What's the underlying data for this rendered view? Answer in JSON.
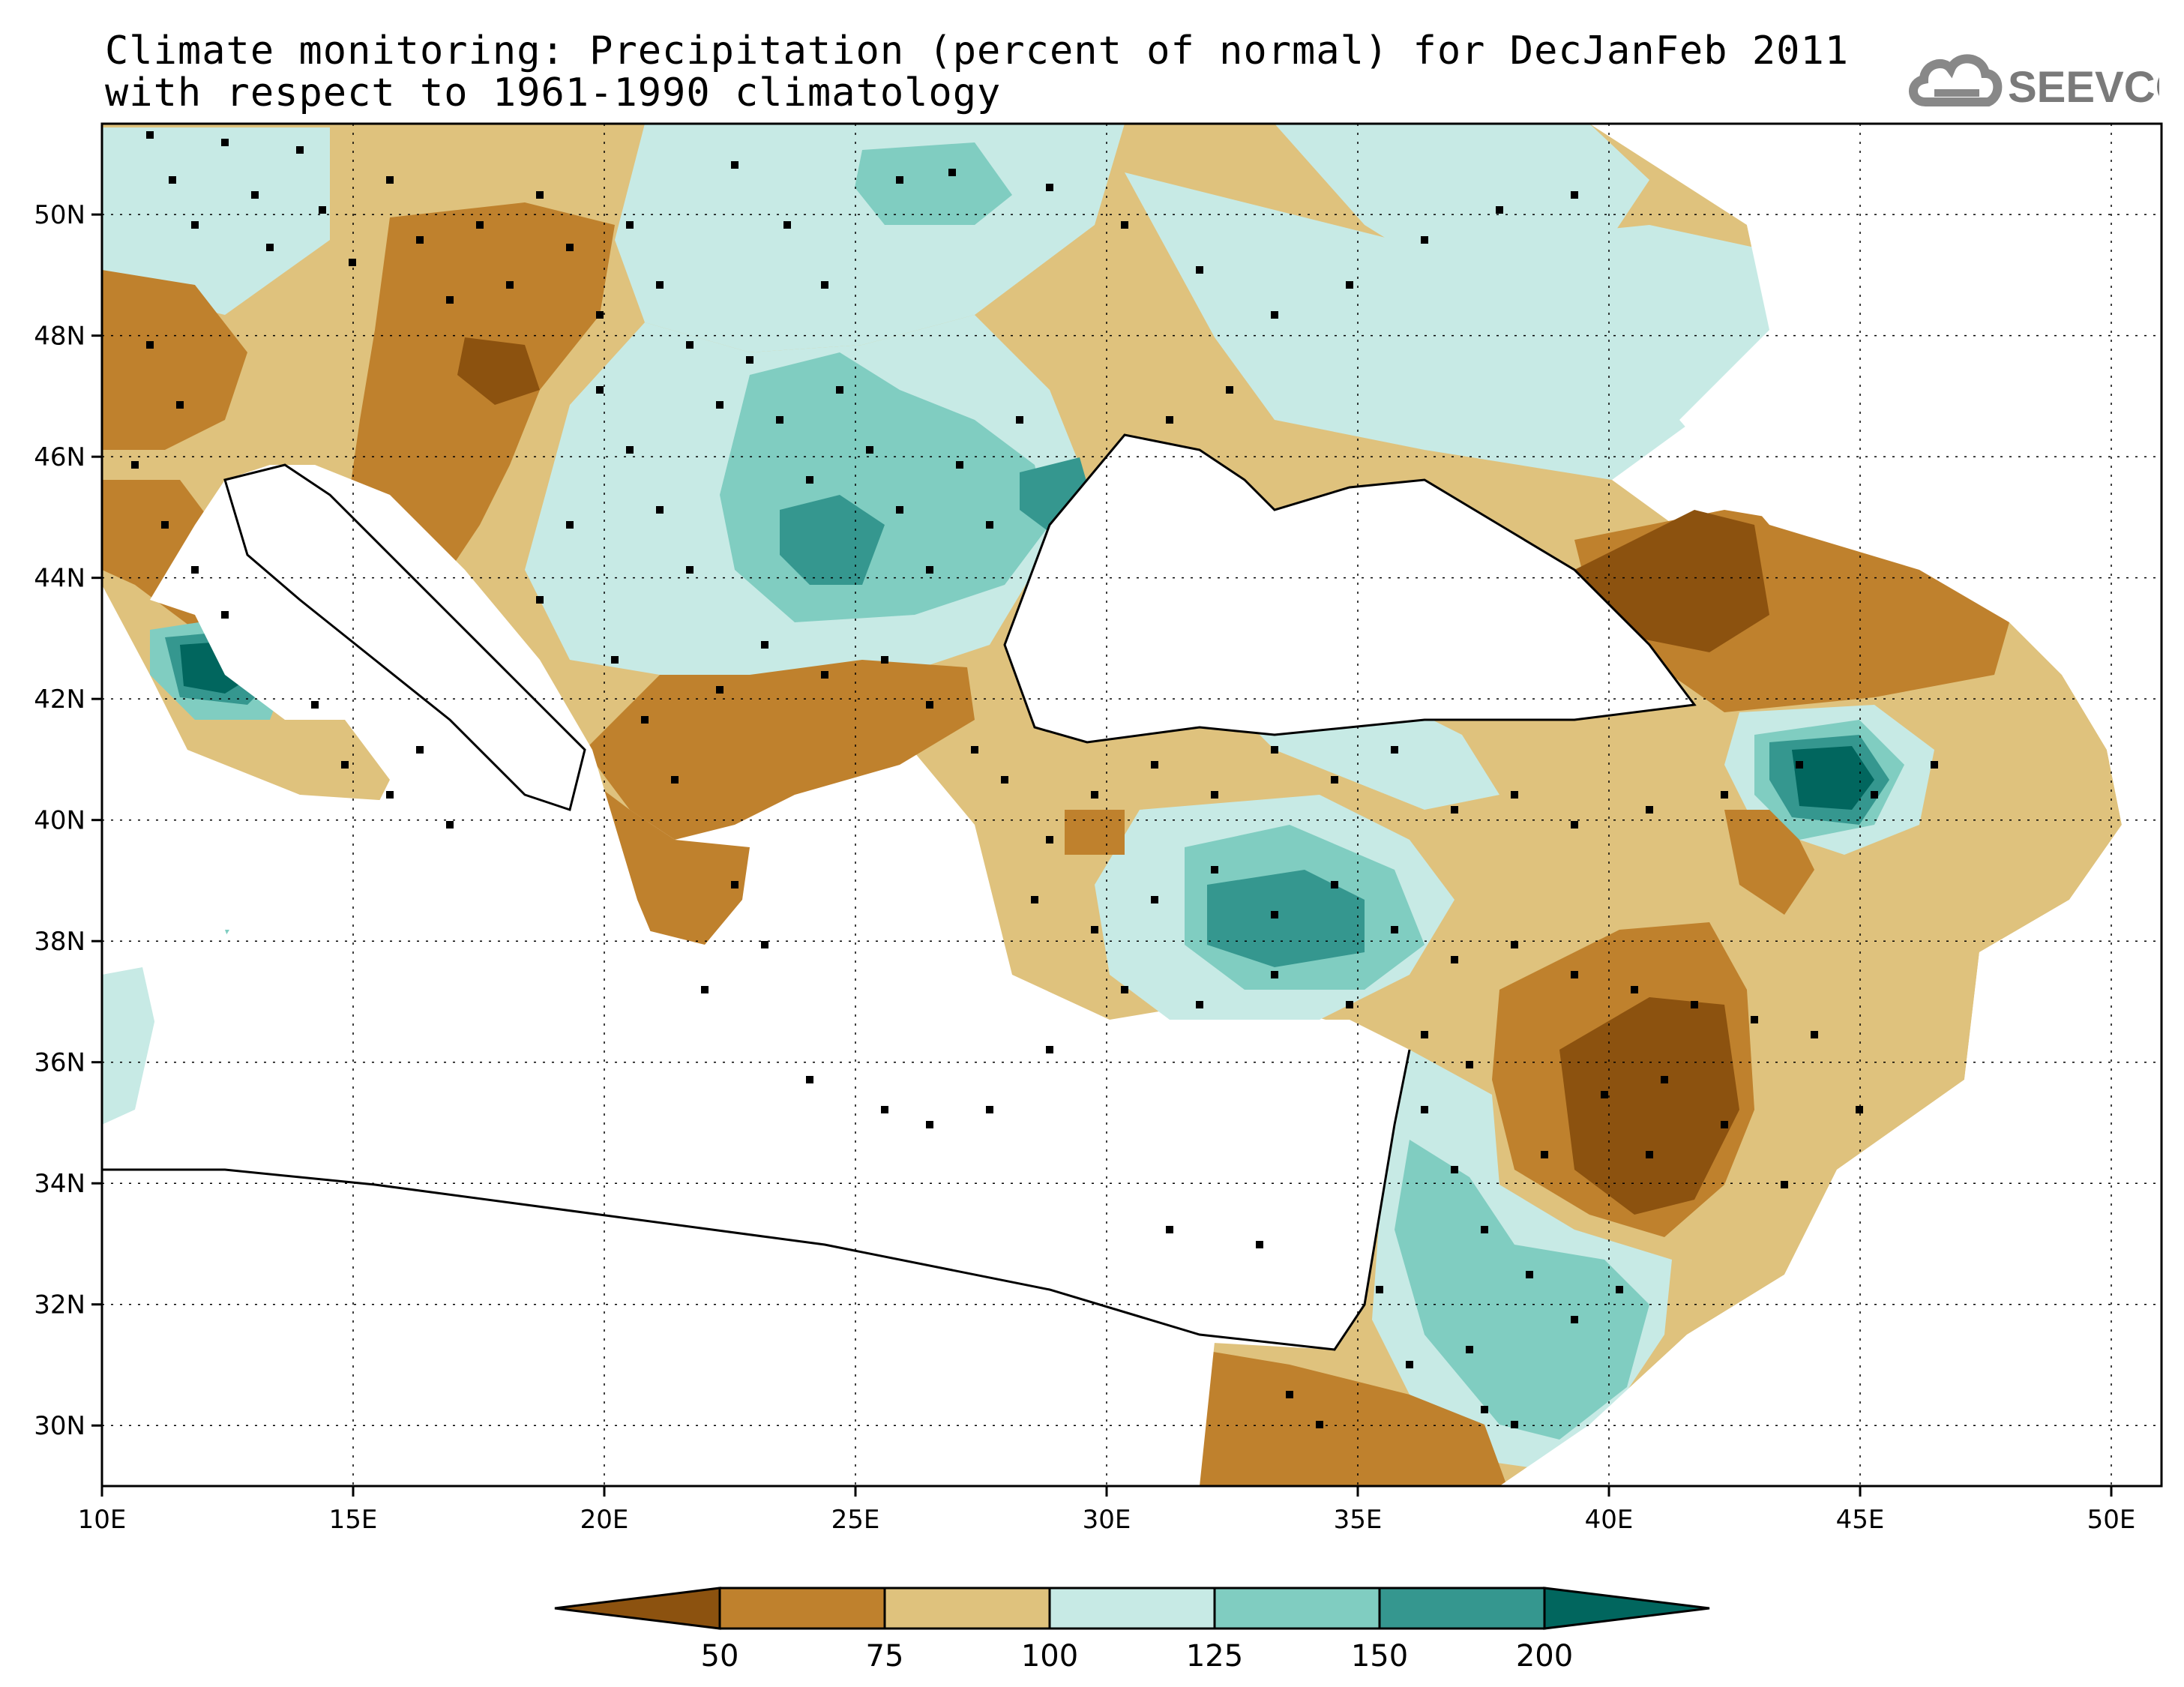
{
  "title": {
    "line1": "Climate monitoring: Precipitation (percent of normal) for DecJanFeb 2011",
    "line2": "with respect to 1961-1990 climatology"
  },
  "logo": {
    "text": "SEEVCCC",
    "icon": "cloud-icon"
  },
  "map": {
    "lon_range": [
      10,
      51
    ],
    "lat_range": [
      29,
      51.5
    ],
    "lon_ticks": [
      {
        "value": 10,
        "label": "10E"
      },
      {
        "value": 15,
        "label": "15E"
      },
      {
        "value": 20,
        "label": "20E"
      },
      {
        "value": 25,
        "label": "25E"
      },
      {
        "value": 30,
        "label": "30E"
      },
      {
        "value": 35,
        "label": "35E"
      },
      {
        "value": 40,
        "label": "40E"
      },
      {
        "value": 45,
        "label": "45E"
      },
      {
        "value": 50,
        "label": "50E"
      }
    ],
    "lat_ticks": [
      {
        "value": 30,
        "label": "30N"
      },
      {
        "value": 32,
        "label": "32N"
      },
      {
        "value": 34,
        "label": "34N"
      },
      {
        "value": 36,
        "label": "36N"
      },
      {
        "value": 38,
        "label": "38N"
      },
      {
        "value": 40,
        "label": "40N"
      },
      {
        "value": 42,
        "label": "42N"
      },
      {
        "value": 44,
        "label": "44N"
      },
      {
        "value": 46,
        "label": "46N"
      },
      {
        "value": 48,
        "label": "48N"
      },
      {
        "value": 50,
        "label": "50N"
      }
    ],
    "grid": "dotted",
    "field_colors": {
      "lt50": "#8c520f",
      "50_75": "#bf812d",
      "75_100": "#dfc27d",
      "100_125": "#c7eae5",
      "125_150": "#80cdc1",
      "150_200": "#35978f",
      "gt200": "#01665e"
    }
  },
  "colorbar": {
    "boundaries": [
      "50",
      "75",
      "100",
      "125",
      "150",
      "200"
    ],
    "colors": [
      "#8c520f",
      "#bf812d",
      "#dfc27d",
      "#c7eae5",
      "#80cdc1",
      "#35978f",
      "#01665e"
    ]
  }
}
